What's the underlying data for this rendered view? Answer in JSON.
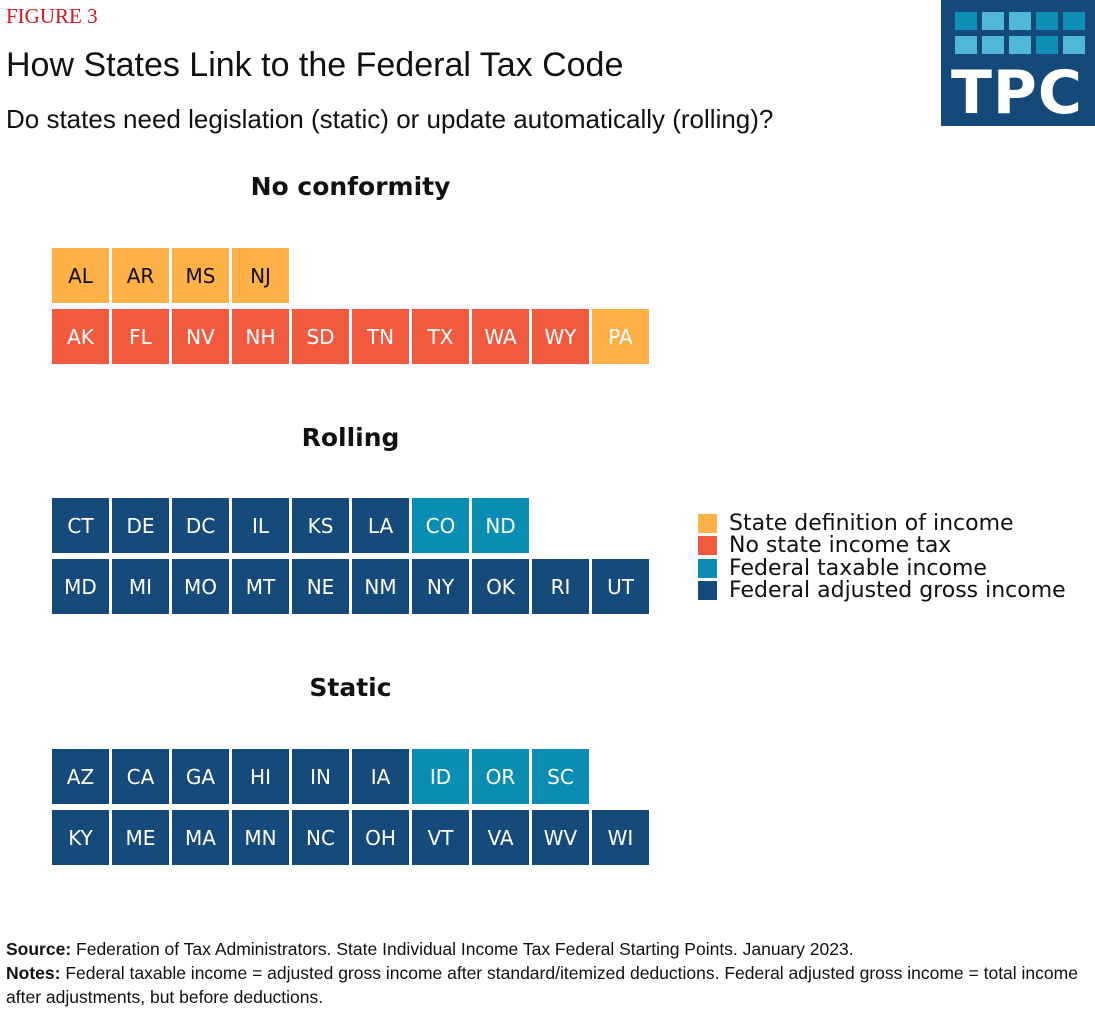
{
  "figure_label": "FIGURE 3",
  "title": "How States Link to the Federal Tax Code",
  "subtitle": "Do states need legislation (static) or update automatically (rolling)?",
  "logo": {
    "text": "TPC",
    "squares_row1": [
      "#0e8fb5",
      "#52b8d8",
      "#52b8d8",
      "#0e8fb5",
      "#0e8fb5"
    ],
    "squares_row2": [
      "#52b8d8",
      "#52b8d8",
      "#52b8d8",
      "#0e8fb5",
      "#52b8d8"
    ]
  },
  "colors": {
    "state_definition": "#fdb147",
    "no_income_tax": "#f25a3f",
    "federal_taxable": "#0a8db2",
    "federal_agi": "#164a7a"
  },
  "chart_data": {
    "type": "table",
    "title": "How States Link to the Federal Tax Code",
    "subtitle": "Do states need legislation (static) or update automatically (rolling)?",
    "legend": [
      {
        "key": "state_definition",
        "label": "State definition of income"
      },
      {
        "key": "no_income_tax",
        "label": "No state income tax"
      },
      {
        "key": "federal_taxable",
        "label": "Federal taxable income"
      },
      {
        "key": "federal_agi",
        "label": "Federal adjusted gross income"
      }
    ],
    "legend_position": "right",
    "groups": [
      {
        "name": "No conformity",
        "rows": [
          [
            {
              "state": "AL",
              "cat": "state_definition"
            },
            {
              "state": "AR",
              "cat": "state_definition"
            },
            {
              "state": "MS",
              "cat": "state_definition"
            },
            {
              "state": "NJ",
              "cat": "state_definition"
            }
          ],
          [
            {
              "state": "AK",
              "cat": "no_income_tax"
            },
            {
              "state": "FL",
              "cat": "no_income_tax"
            },
            {
              "state": "NV",
              "cat": "no_income_tax"
            },
            {
              "state": "NH",
              "cat": "no_income_tax"
            },
            {
              "state": "SD",
              "cat": "no_income_tax"
            },
            {
              "state": "TN",
              "cat": "no_income_tax"
            },
            {
              "state": "TX",
              "cat": "no_income_tax"
            },
            {
              "state": "WA",
              "cat": "no_income_tax"
            },
            {
              "state": "WY",
              "cat": "no_income_tax"
            },
            {
              "state": "PA",
              "cat": "state_definition",
              "light_text": true
            }
          ]
        ]
      },
      {
        "name": "Rolling",
        "rows": [
          [
            {
              "state": "CT",
              "cat": "federal_agi"
            },
            {
              "state": "DE",
              "cat": "federal_agi"
            },
            {
              "state": "DC",
              "cat": "federal_agi"
            },
            {
              "state": "IL",
              "cat": "federal_agi"
            },
            {
              "state": "KS",
              "cat": "federal_agi"
            },
            {
              "state": "LA",
              "cat": "federal_agi"
            },
            {
              "state": "CO",
              "cat": "federal_taxable"
            },
            {
              "state": "ND",
              "cat": "federal_taxable"
            }
          ],
          [
            {
              "state": "MD",
              "cat": "federal_agi"
            },
            {
              "state": "MI",
              "cat": "federal_agi"
            },
            {
              "state": "MO",
              "cat": "federal_agi"
            },
            {
              "state": "MT",
              "cat": "federal_agi"
            },
            {
              "state": "NE",
              "cat": "federal_agi"
            },
            {
              "state": "NM",
              "cat": "federal_agi"
            },
            {
              "state": "NY",
              "cat": "federal_agi"
            },
            {
              "state": "OK",
              "cat": "federal_agi"
            },
            {
              "state": "RI",
              "cat": "federal_agi"
            },
            {
              "state": "UT",
              "cat": "federal_agi"
            }
          ]
        ]
      },
      {
        "name": "Static",
        "rows": [
          [
            {
              "state": "AZ",
              "cat": "federal_agi"
            },
            {
              "state": "CA",
              "cat": "federal_agi"
            },
            {
              "state": "GA",
              "cat": "federal_agi"
            },
            {
              "state": "HI",
              "cat": "federal_agi"
            },
            {
              "state": "IN",
              "cat": "federal_agi"
            },
            {
              "state": "IA",
              "cat": "federal_agi"
            },
            {
              "state": "ID",
              "cat": "federal_taxable"
            },
            {
              "state": "OR",
              "cat": "federal_taxable"
            },
            {
              "state": "SC",
              "cat": "federal_taxable"
            }
          ],
          [
            {
              "state": "KY",
              "cat": "federal_agi"
            },
            {
              "state": "ME",
              "cat": "federal_agi"
            },
            {
              "state": "MA",
              "cat": "federal_agi"
            },
            {
              "state": "MN",
              "cat": "federal_agi"
            },
            {
              "state": "NC",
              "cat": "federal_agi"
            },
            {
              "state": "OH",
              "cat": "federal_agi"
            },
            {
              "state": "VT",
              "cat": "federal_agi"
            },
            {
              "state": "VA",
              "cat": "federal_agi"
            },
            {
              "state": "WV",
              "cat": "federal_agi"
            },
            {
              "state": "WI",
              "cat": "federal_agi"
            }
          ]
        ]
      }
    ]
  },
  "footer": {
    "source_label": "Source:",
    "source_text": " Federation of Tax Administrators. State Individual Income Tax Federal Starting Points. January 2023.",
    "notes_label": "Notes:",
    "notes_text": " Federal taxable income = adjusted gross income after standard/itemized deductions. Federal adjusted gross income = total income after adjustments, but before deductions."
  }
}
